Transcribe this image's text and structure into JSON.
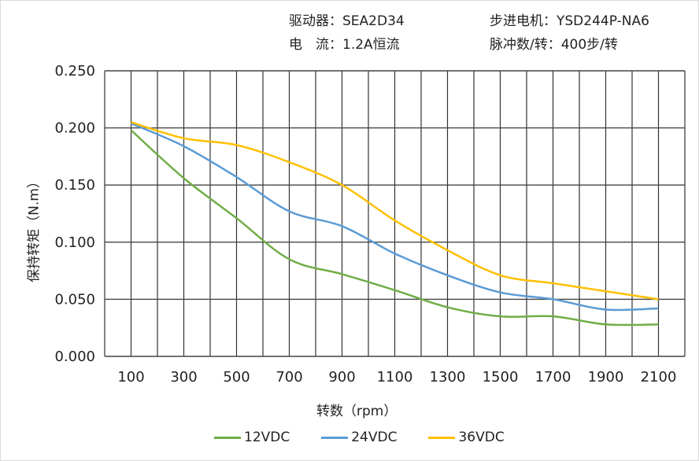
{
  "header": {
    "driver": "驱动器：SEA2D34",
    "current": "电　流：1.2A恒流",
    "motor": "步进电机：YSD244P-NA6",
    "pulses": "脉冲数/转：400步/转"
  },
  "chart_data": {
    "type": "line",
    "xlabel": "转数（rpm）",
    "ylabel": "保持转矩（N.m）",
    "x": [
      100,
      300,
      500,
      700,
      900,
      1100,
      1300,
      1500,
      1700,
      1900,
      2100
    ],
    "x_ticks": [
      "100",
      "300",
      "500",
      "700",
      "900",
      "1100",
      "1300",
      "1500",
      "1700",
      "1900",
      "2100"
    ],
    "y_ticks": [
      "0.000",
      "0.050",
      "0.100",
      "0.150",
      "0.200",
      "0.250"
    ],
    "ylim": [
      0,
      0.25
    ],
    "xlim": [
      0,
      2200
    ],
    "grid": true,
    "legend_position": "bottom",
    "series": [
      {
        "name": "12VDC",
        "color": "#70ad47",
        "values": [
          0.198,
          0.156,
          0.121,
          0.085,
          0.072,
          0.058,
          0.043,
          0.035,
          0.035,
          0.028,
          0.028
        ]
      },
      {
        "name": "24VDC",
        "color": "#5b9bd5",
        "values": [
          0.204,
          0.184,
          0.157,
          0.127,
          0.114,
          0.09,
          0.071,
          0.056,
          0.05,
          0.041,
          0.042
        ]
      },
      {
        "name": "36VDC",
        "color": "#ffc000",
        "values": [
          0.205,
          0.191,
          0.185,
          0.17,
          0.15,
          0.119,
          0.093,
          0.071,
          0.064,
          0.057,
          0.05
        ]
      }
    ]
  }
}
